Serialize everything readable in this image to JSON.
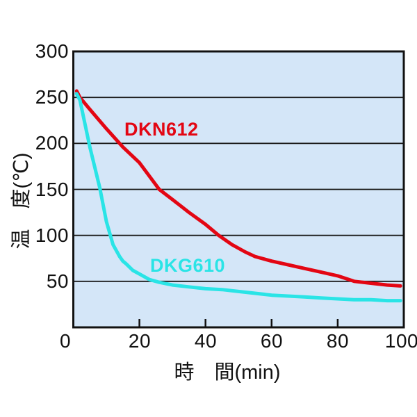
{
  "chart_data": {
    "type": "line",
    "title": "",
    "xlabel": "時　間(min)",
    "ylabel": "温　度(℃)",
    "xlim": [
      0,
      100
    ],
    "ylim": [
      0,
      300
    ],
    "xticks": [
      0,
      20,
      40,
      60,
      80,
      100
    ],
    "yticks": [
      300,
      250,
      200,
      150,
      100,
      50
    ],
    "xtick_labels": [
      "0",
      "20",
      "40",
      "60",
      "80",
      "100"
    ],
    "ytick_labels": [
      "300",
      "250",
      "200",
      "150",
      "100",
      "50"
    ],
    "grid": "horizontal-only",
    "legend_position": "inline-labels-on-plot",
    "colors": {
      "plot_background": "#d4e6f8",
      "frame": "#111111",
      "gridline": "#1a1a1a",
      "text": "#111111",
      "series_red": "#e30613",
      "series_cyan": "#2ae4e6"
    },
    "series": [
      {
        "name": "DKN612",
        "color": "#e30613",
        "points": [
          [
            1,
            257
          ],
          [
            2,
            250
          ],
          [
            5,
            237
          ],
          [
            10,
            216
          ],
          [
            15,
            196
          ],
          [
            20,
            179
          ],
          [
            26,
            150
          ],
          [
            30,
            139
          ],
          [
            35,
            125
          ],
          [
            40,
            112
          ],
          [
            44,
            100
          ],
          [
            48,
            90
          ],
          [
            52,
            82
          ],
          [
            55,
            77
          ],
          [
            60,
            72
          ],
          [
            65,
            68
          ],
          [
            70,
            64
          ],
          [
            75,
            60
          ],
          [
            80,
            56
          ],
          [
            85,
            50
          ],
          [
            90,
            48
          ],
          [
            95,
            46
          ],
          [
            99,
            45
          ]
        ]
      },
      {
        "name": "DKG610",
        "color": "#2ae4e6",
        "points": [
          [
            1,
            254
          ],
          [
            2,
            247
          ],
          [
            5,
            196
          ],
          [
            8,
            152
          ],
          [
            10,
            115
          ],
          [
            12,
            90
          ],
          [
            14,
            77
          ],
          [
            15,
            72
          ],
          [
            16,
            69
          ],
          [
            18,
            62
          ],
          [
            20,
            58
          ],
          [
            23,
            52
          ],
          [
            26,
            49
          ],
          [
            30,
            46
          ],
          [
            35,
            44
          ],
          [
            40,
            42
          ],
          [
            45,
            41
          ],
          [
            50,
            39
          ],
          [
            55,
            37
          ],
          [
            60,
            35
          ],
          [
            65,
            34
          ],
          [
            70,
            33
          ],
          [
            75,
            32
          ],
          [
            80,
            31
          ],
          [
            85,
            30
          ],
          [
            90,
            30
          ],
          [
            95,
            29
          ],
          [
            99,
            29
          ]
        ]
      }
    ]
  }
}
